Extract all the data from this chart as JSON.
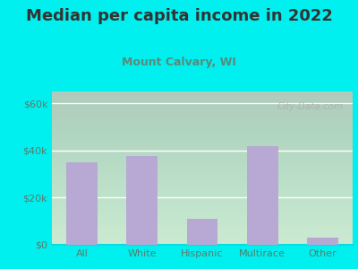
{
  "title": "Median per capita income in 2022",
  "subtitle": "Mount Calvary, WI",
  "categories": [
    "All",
    "White",
    "Hispanic",
    "Multirace",
    "Other"
  ],
  "values": [
    35000,
    37500,
    11000,
    42000,
    3000
  ],
  "bar_color": "#b8a8d4",
  "background_outer": "#00f0f0",
  "title_color": "#333333",
  "subtitle_color": "#5a8a7a",
  "tick_color": "#5a7a6a",
  "ytick_labels": [
    "$0",
    "$20k",
    "$40k",
    "$60k"
  ],
  "ytick_values": [
    0,
    20000,
    40000,
    60000
  ],
  "ylim": [
    0,
    65000
  ],
  "watermark": "City-Data.com",
  "title_fontsize": 13,
  "subtitle_fontsize": 9,
  "tick_fontsize": 8
}
